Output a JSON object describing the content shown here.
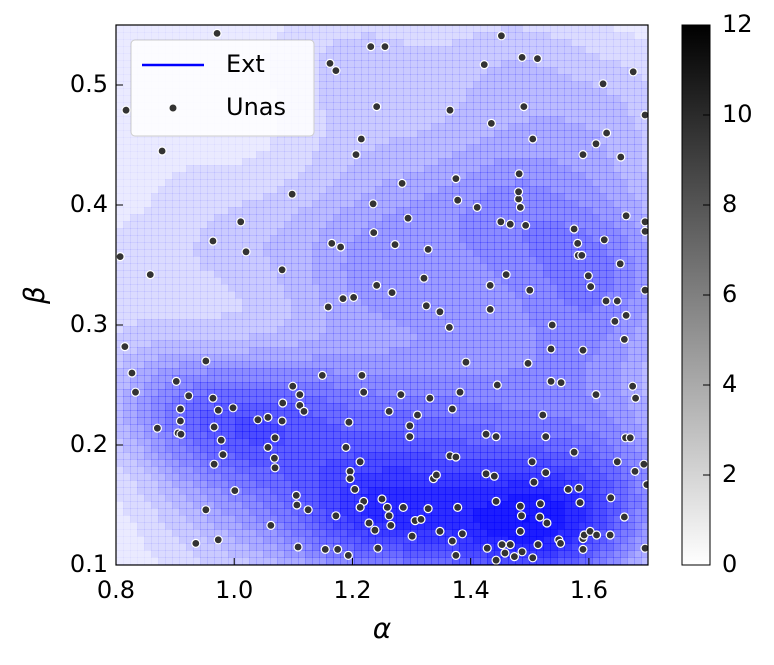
{
  "chart_data": {
    "type": "scatter",
    "x_label": "α",
    "y_label": "β",
    "xlim": [
      0.8,
      1.7
    ],
    "ylim": [
      0.1,
      0.55
    ],
    "xticks": [
      0.8,
      {
        "value": 1.0,
        "label": "1.0"
      },
      1.2,
      1.4,
      1.6
    ],
    "yticks": [
      0.1,
      0.2,
      0.3,
      0.4,
      0.5
    ],
    "legend": "upper left",
    "density_color": "#0000ff",
    "series": [
      {
        "name": "Ext",
        "color": "#0000ff"
      },
      {
        "name": "Unas",
        "color": "#333333",
        "x": [
          0.817,
          0.878,
          0.971,
          0.807,
          0.858,
          0.964,
          1.011,
          1.02,
          1.098,
          1.081,
          1.162,
          1.172,
          1.206,
          1.215,
          1.231,
          1.255,
          1.241,
          1.235,
          1.236,
          1.284,
          1.294,
          1.272,
          1.165,
          1.18,
          1.184,
          1.202,
          1.159,
          1.241,
          1.267,
          1.321,
          1.325,
          1.348,
          1.364,
          1.328,
          1.365,
          1.375,
          1.378,
          1.411,
          1.423,
          1.435,
          1.452,
          1.487,
          1.49,
          1.505,
          1.513,
          1.451,
          1.46,
          1.433,
          1.433,
          1.467,
          1.481,
          1.481,
          1.482,
          1.484,
          1.493,
          1.5,
          1.582,
          1.575,
          1.588,
          1.581,
          1.59,
          1.612,
          1.624,
          1.63,
          1.654,
          1.675,
          1.695,
          1.695,
          1.695,
          1.663,
          1.653,
          1.626,
          1.599,
          1.603,
          1.629,
          1.648,
          1.663,
          1.644,
          1.695,
          1.538,
          1.536,
          1.59,
          1.66,
          0.815,
          0.827,
          0.833,
          0.87,
          0.902,
          0.923,
          0.909,
          0.909,
          0.905,
          0.91,
          0.952,
          0.964,
          0.973,
          0.966,
          0.978,
          0.981,
          0.966,
          0.998,
          1.001,
          0.952,
          0.935,
          0.973,
          1.04,
          1.057,
          1.057,
          1.069,
          1.068,
          1.069,
          1.062,
          1.082,
          1.081,
          1.099,
          1.111,
          1.111,
          1.118,
          1.105,
          1.106,
          1.108,
          1.125,
          1.149,
          1.154,
          1.172,
          1.175,
          1.193,
          1.189,
          1.196,
          1.196,
          1.204,
          1.194,
          1.216,
          1.219,
          1.213,
          1.219,
          1.228,
          1.238,
          1.25,
          1.259,
          1.262,
          1.286,
          1.265,
          1.243,
          1.213,
          1.262,
          1.282,
          1.297,
          1.297,
          1.31,
          1.306,
          1.316,
          1.328,
          1.301,
          1.331,
          1.337,
          1.342,
          1.365,
          1.369,
          1.382,
          1.375,
          1.378,
          1.348,
          1.369,
          1.375,
          1.386,
          1.392,
          1.426,
          1.426,
          1.428,
          1.44,
          1.443,
          1.443,
          1.443,
          1.445,
          1.453,
          1.458,
          1.467,
          1.474,
          1.484,
          1.484,
          1.486,
          1.487,
          1.497,
          1.504,
          1.514,
          1.505,
          1.507,
          1.517,
          1.518,
          1.522,
          1.527,
          1.527,
          1.529,
          1.536,
          1.549,
          1.553,
          1.552,
          1.565,
          1.575,
          1.583,
          1.585,
          1.59,
          1.59,
          1.592,
          1.602,
          1.613,
          1.612,
          1.636,
          1.637,
          1.648,
          1.66,
          1.662,
          1.67,
          1.679,
          1.674,
          1.678,
          1.693,
          1.695,
          1.698
        ],
        "y": [
          0.479,
          0.445,
          0.543,
          0.357,
          0.342,
          0.37,
          0.386,
          0.361,
          0.409,
          0.346,
          0.518,
          0.512,
          0.442,
          0.455,
          0.532,
          0.532,
          0.482,
          0.401,
          0.377,
          0.418,
          0.389,
          0.367,
          0.368,
          0.365,
          0.322,
          0.323,
          0.315,
          0.333,
          0.327,
          0.339,
          0.316,
          0.311,
          0.298,
          0.363,
          0.479,
          0.422,
          0.404,
          0.398,
          0.517,
          0.468,
          0.541,
          0.523,
          0.482,
          0.455,
          0.522,
          0.386,
          0.342,
          0.333,
          0.313,
          0.384,
          0.405,
          0.411,
          0.426,
          0.398,
          0.383,
          0.329,
          0.358,
          0.38,
          0.358,
          0.368,
          0.442,
          0.451,
          0.501,
          0.46,
          0.44,
          0.511,
          0.475,
          0.386,
          0.378,
          0.391,
          0.351,
          0.371,
          0.341,
          0.332,
          0.32,
          0.32,
          0.308,
          0.303,
          0.329,
          0.3,
          0.28,
          0.279,
          0.288,
          0.282,
          0.26,
          0.244,
          0.214,
          0.253,
          0.241,
          0.23,
          0.22,
          0.21,
          0.209,
          0.27,
          0.239,
          0.229,
          0.215,
          0.204,
          0.192,
          0.184,
          0.231,
          0.162,
          0.146,
          0.118,
          0.121,
          0.221,
          0.223,
          0.198,
          0.206,
          0.189,
          0.181,
          0.133,
          0.235,
          0.22,
          0.249,
          0.242,
          0.233,
          0.228,
          0.158,
          0.15,
          0.115,
          0.146,
          0.258,
          0.113,
          0.141,
          0.113,
          0.108,
          0.198,
          0.178,
          0.172,
          0.163,
          0.219,
          0.258,
          0.244,
          0.186,
          0.153,
          0.135,
          0.129,
          0.155,
          0.148,
          0.141,
          0.148,
          0.133,
          0.114,
          0.148,
          0.228,
          0.242,
          0.216,
          0.207,
          0.225,
          0.137,
          0.138,
          0.147,
          0.124,
          0.239,
          0.172,
          0.175,
          0.191,
          0.23,
          0.244,
          0.19,
          0.148,
          0.128,
          0.12,
          0.108,
          0.126,
          0.269,
          0.209,
          0.176,
          0.114,
          0.174,
          0.207,
          0.153,
          0.104,
          0.25,
          0.117,
          0.11,
          0.117,
          0.107,
          0.128,
          0.149,
          0.141,
          0.111,
          0.268,
          0.186,
          0.117,
          0.106,
          0.169,
          0.14,
          0.151,
          0.225,
          0.207,
          0.177,
          0.135,
          0.253,
          0.121,
          0.252,
          0.118,
          0.163,
          0.194,
          0.164,
          0.152,
          0.122,
          0.113,
          0.125,
          0.128,
          0.125,
          0.242,
          0.125,
          0.156,
          0.186,
          0.14,
          0.206,
          0.206,
          0.239,
          0.249,
          0.178,
          0.184,
          0.114,
          0.167
        ]
      }
    ],
    "colorbar": {
      "lim": [
        0,
        12
      ],
      "ticks": [
        0,
        2,
        4,
        6,
        8,
        10,
        12
      ],
      "colors": [
        "#ffffff",
        "#000000"
      ]
    }
  }
}
